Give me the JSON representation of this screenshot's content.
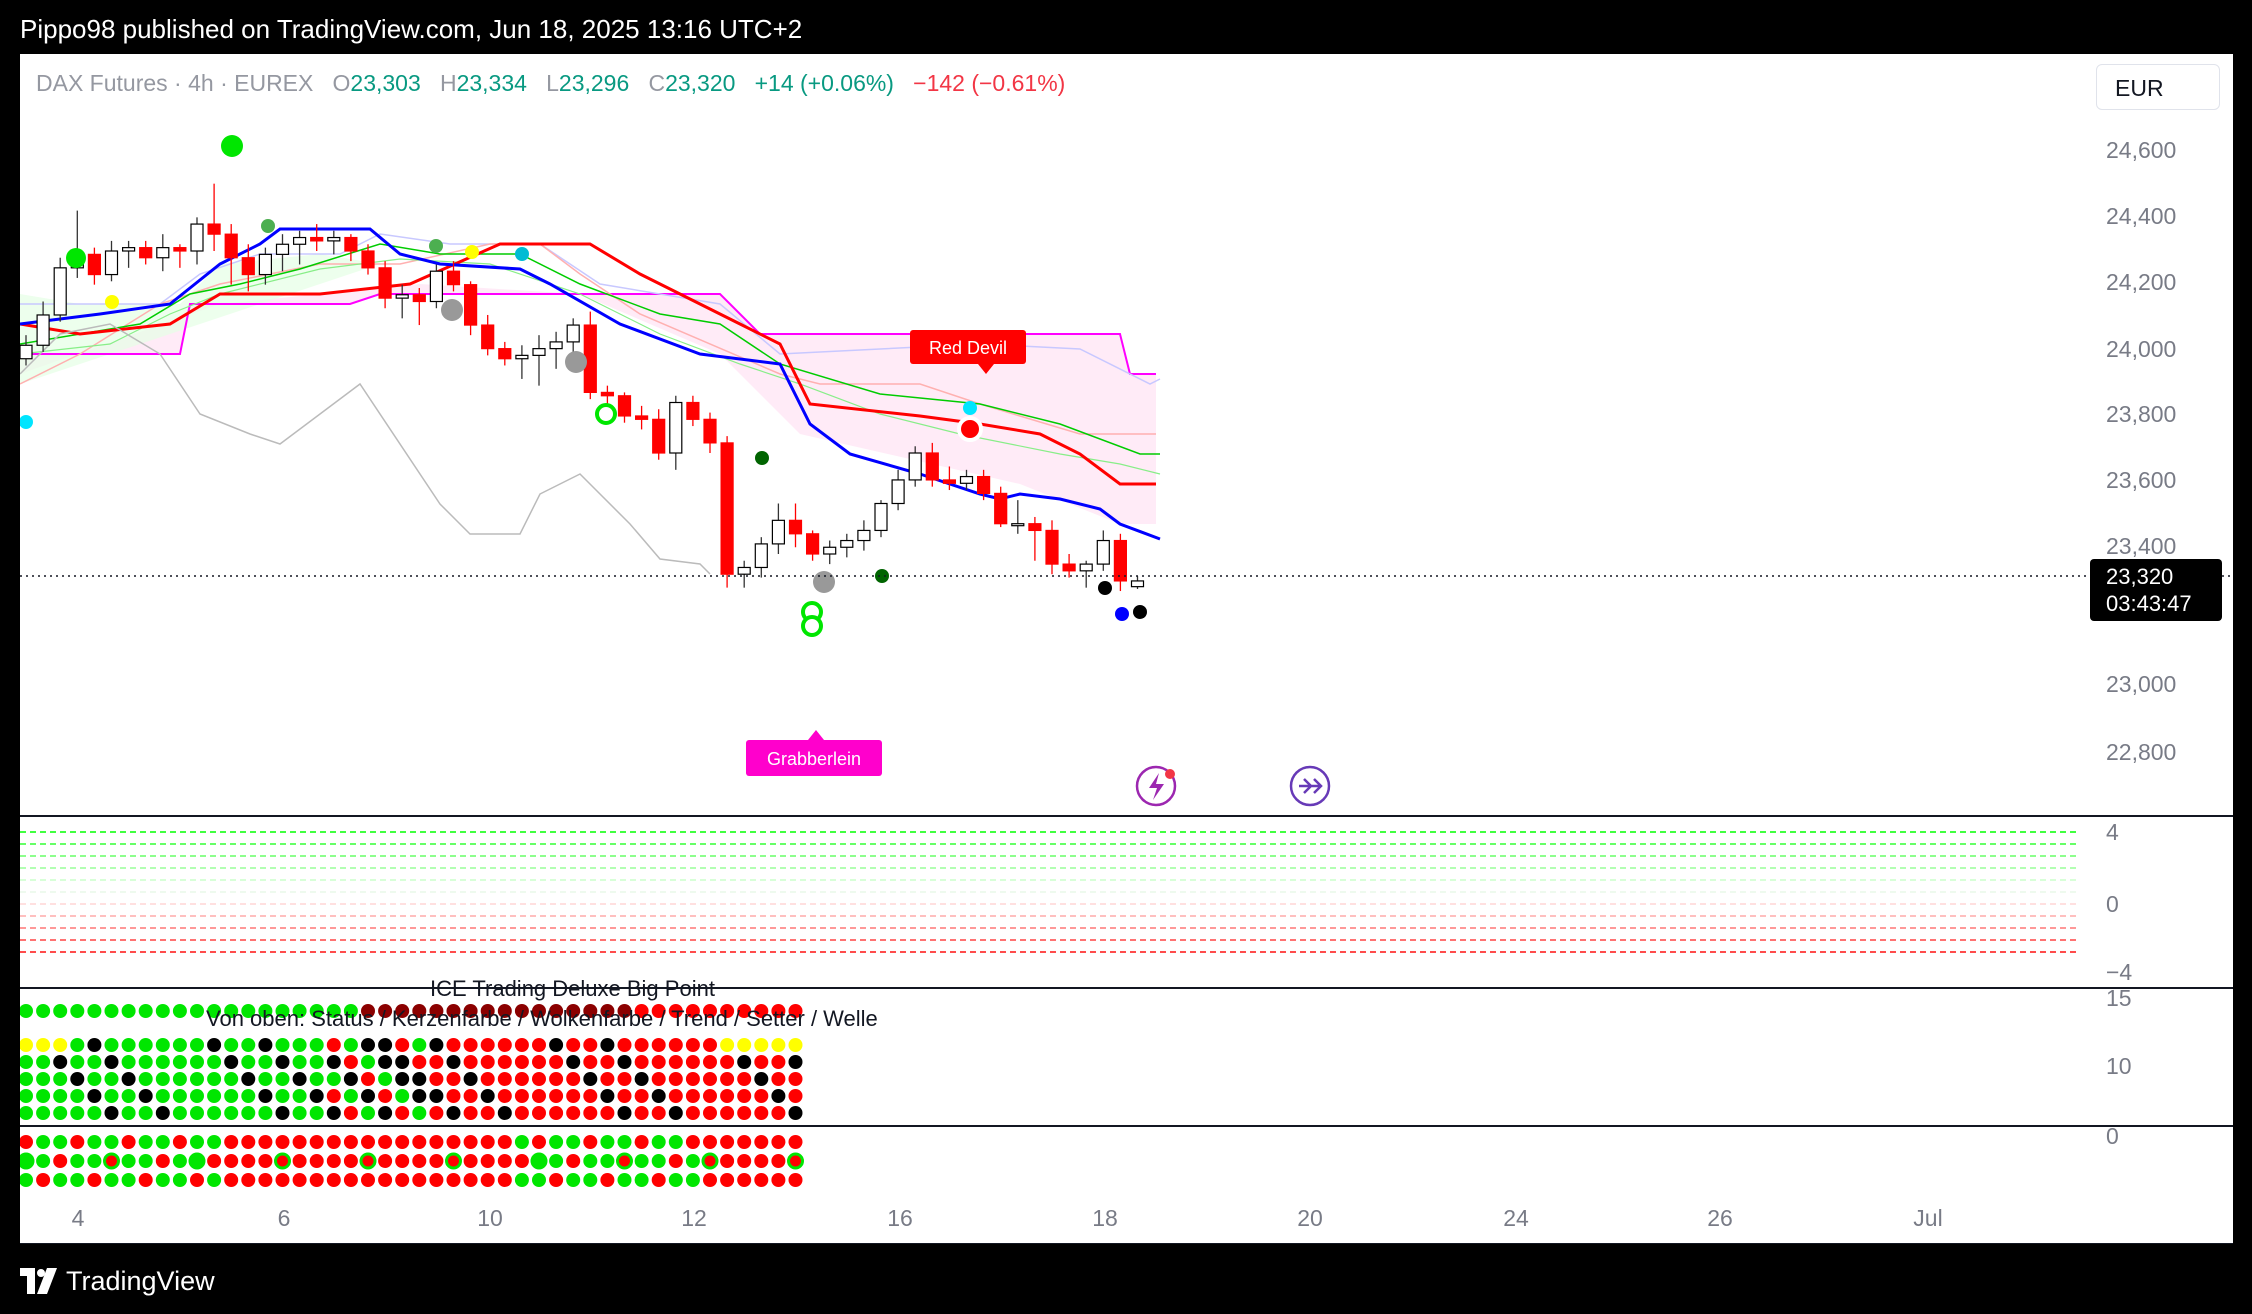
{
  "header": {
    "published": "Pippo98 published on TradingView.com, Jun 18, 2025 13:16 UTC+2"
  },
  "footer": {
    "brand": "TradingView"
  },
  "legend": {
    "symbol": "DAX Futures · 4h · EUREX",
    "o_label": "O",
    "o": "23,303",
    "h_label": "H",
    "h": "23,334",
    "l_label": "L",
    "l": "23,296",
    "c_label": "C",
    "c": "23,320",
    "change": "+14 (+0.06%)",
    "change2": "−142 (−0.61%)"
  },
  "currency": "EUR",
  "price_tag": {
    "price": "23,320",
    "countdown": "03:43:47"
  },
  "annotations": {
    "red_devil": "Red Devil",
    "grabberlein": "Grabberlein"
  },
  "panes": {
    "p3_title": "ICE Trading Deluxe Big Point",
    "p3_subtitle": "Von oben: Status / Kerzenfarbe / Wolkenfarbe / Trend / Setter / Welle"
  },
  "colors": {
    "up": "#00e600",
    "down": "#ff0000",
    "blue_line": "#0000ff",
    "red_line": "#ff0000",
    "magenta": "#ff00ff",
    "label_bg": "#ff0000",
    "grab_bg": "#ff00cc"
  },
  "chart_data": {
    "type": "candlestick",
    "price_axis": [
      "24,600",
      "24,400",
      "24,200",
      "24,000",
      "23,800",
      "23,600",
      "23,400",
      "23,000",
      "22,800"
    ],
    "time_axis": [
      "4",
      "6",
      "10",
      "12",
      "16",
      "18",
      "20",
      "24",
      "26",
      "Jul"
    ],
    "ylim": [
      22700,
      24750
    ],
    "osc_axis": [
      "4",
      "0",
      "−4"
    ],
    "bp_axis": [
      "15",
      "10",
      "0"
    ],
    "candles": [
      [
        23980,
        24050,
        23960,
        24020
      ],
      [
        24020,
        24150,
        24000,
        24110
      ],
      [
        24110,
        24280,
        24090,
        24250
      ],
      [
        24250,
        24420,
        24220,
        24290
      ],
      [
        24290,
        24310,
        24200,
        24230
      ],
      [
        24230,
        24330,
        24210,
        24300
      ],
      [
        24300,
        24330,
        24250,
        24310
      ],
      [
        24310,
        24330,
        24260,
        24280
      ],
      [
        24280,
        24350,
        24240,
        24310
      ],
      [
        24310,
        24320,
        24250,
        24300
      ],
      [
        24300,
        24400,
        24260,
        24380
      ],
      [
        24380,
        24500,
        24300,
        24350
      ],
      [
        24350,
        24380,
        24200,
        24280
      ],
      [
        24280,
        24320,
        24180,
        24230
      ],
      [
        24230,
        24310,
        24200,
        24290
      ],
      [
        24290,
        24350,
        24240,
        24320
      ],
      [
        24320,
        24360,
        24260,
        24340
      ],
      [
        24340,
        24380,
        24300,
        24330
      ],
      [
        24330,
        24360,
        24290,
        24340
      ],
      [
        24340,
        24350,
        24270,
        24300
      ],
      [
        24300,
        24320,
        24230,
        24250
      ],
      [
        24250,
        24270,
        24130,
        24160
      ],
      [
        24160,
        24200,
        24100,
        24170
      ],
      [
        24170,
        24190,
        24080,
        24150
      ],
      [
        24150,
        24260,
        24130,
        24240
      ],
      [
        24240,
        24270,
        24180,
        24200
      ],
      [
        24200,
        24210,
        24050,
        24080
      ],
      [
        24080,
        24110,
        23990,
        24010
      ],
      [
        24010,
        24030,
        23960,
        23980
      ],
      [
        23980,
        24020,
        23920,
        23990
      ],
      [
        23990,
        24050,
        23900,
        24010
      ],
      [
        24010,
        24060,
        23950,
        24030
      ],
      [
        24030,
        24100,
        24000,
        24080
      ],
      [
        24080,
        24120,
        23860,
        23880
      ],
      [
        23880,
        23900,
        23830,
        23870
      ],
      [
        23870,
        23880,
        23790,
        23810
      ],
      [
        23810,
        23840,
        23770,
        23800
      ],
      [
        23800,
        23830,
        23680,
        23700
      ],
      [
        23700,
        23870,
        23650,
        23850
      ],
      [
        23850,
        23870,
        23780,
        23800
      ],
      [
        23800,
        23820,
        23700,
        23730
      ],
      [
        23730,
        23750,
        23300,
        23340
      ],
      [
        23340,
        23380,
        23300,
        23360
      ],
      [
        23360,
        23450,
        23330,
        23430
      ],
      [
        23430,
        23550,
        23400,
        23500
      ],
      [
        23500,
        23550,
        23420,
        23460
      ],
      [
        23460,
        23470,
        23380,
        23400
      ],
      [
        23400,
        23440,
        23370,
        23420
      ],
      [
        23420,
        23460,
        23390,
        23440
      ],
      [
        23440,
        23500,
        23410,
        23470
      ],
      [
        23470,
        23560,
        23450,
        23550
      ],
      [
        23550,
        23650,
        23530,
        23620
      ],
      [
        23620,
        23720,
        23600,
        23700
      ],
      [
        23700,
        23730,
        23600,
        23620
      ],
      [
        23620,
        23660,
        23590,
        23610
      ],
      [
        23610,
        23650,
        23590,
        23630
      ],
      [
        23630,
        23650,
        23560,
        23580
      ],
      [
        23580,
        23600,
        23480,
        23490
      ],
      [
        23490,
        23560,
        23460,
        23490
      ],
      [
        23490,
        23510,
        23380,
        23470
      ],
      [
        23470,
        23500,
        23340,
        23370
      ],
      [
        23370,
        23400,
        23330,
        23350
      ],
      [
        23350,
        23380,
        23300,
        23370
      ],
      [
        23370,
        23470,
        23350,
        23440
      ],
      [
        23440,
        23460,
        23290,
        23320
      ],
      [
        23303,
        23334,
        23296,
        23320
      ]
    ]
  }
}
